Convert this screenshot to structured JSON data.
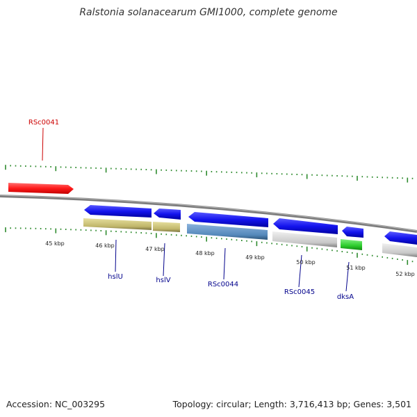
{
  "title": "Ralstonia solanacearum GMI1000, complete genome",
  "footer": {
    "accession": "Accession: NC_003295",
    "summary": "Topology: circular; Length: 3,716,413 bp; Genes: 3,501"
  },
  "colors": {
    "backbone": "#888888",
    "tick": "#2e8b2e",
    "red_gene": "#ff2020",
    "blue_gene": "#1a1aee",
    "olive_gene": "#c8bf78",
    "steel_gene": "#5b8fc0",
    "gray_gene": "#cccccc",
    "green_gene": "#33cc33",
    "red_label": "#cc0000",
    "blue_label": "#00008b"
  },
  "axis": {
    "kbp_labels": [
      "45 kbp",
      "46 kbp",
      "47 kbp",
      "48 kbp",
      "49 kbp",
      "50 kbp",
      "51 kbp",
      "52 kbp"
    ]
  },
  "genes": [
    {
      "name": "RSc0041",
      "strand": "forward",
      "color": "red"
    },
    {
      "name": "hslU",
      "strand": "reverse",
      "color": "blue"
    },
    {
      "name": "hslV",
      "strand": "reverse",
      "color": "blue"
    },
    {
      "name": "RSc0044",
      "strand": "reverse",
      "color": "blue"
    },
    {
      "name": "RSc0045",
      "strand": "reverse",
      "color": "blue"
    },
    {
      "name": "dksA",
      "strand": "reverse",
      "color": "blue"
    }
  ]
}
